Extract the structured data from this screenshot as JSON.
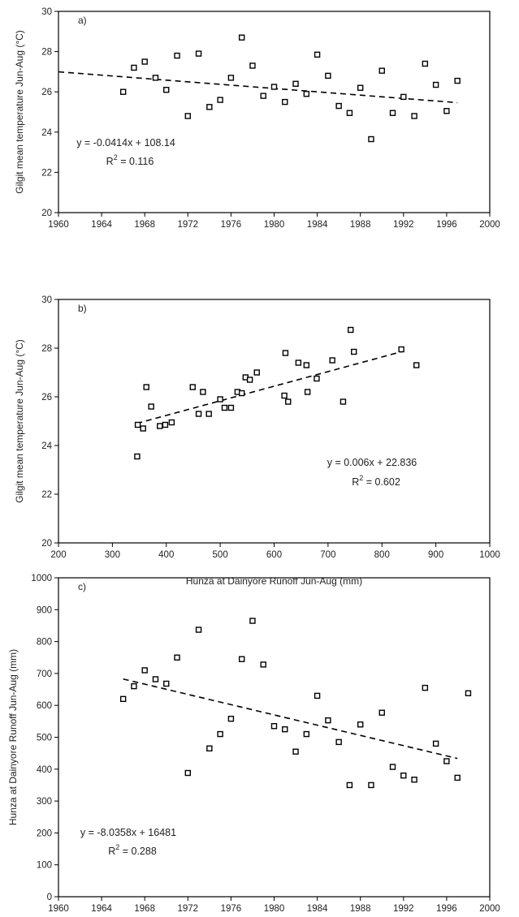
{
  "chart_data": [
    {
      "type": "scatter",
      "panel_label": "a)",
      "title": "",
      "xlabel": "",
      "ylabel": "Gilgit mean temperature Jun-Aug (°C)",
      "xlim": [
        1960,
        2000
      ],
      "ylim": [
        20,
        30
      ],
      "xticks": [
        1960,
        1964,
        1968,
        1972,
        1976,
        1980,
        1984,
        1988,
        1992,
        1996,
        2000
      ],
      "yticks": [
        20,
        22,
        24,
        26,
        28,
        30
      ],
      "grid": false,
      "points": [
        [
          1966,
          26.0
        ],
        [
          1967,
          27.2
        ],
        [
          1968,
          27.5
        ],
        [
          1969,
          26.7
        ],
        [
          1970,
          26.1
        ],
        [
          1971,
          27.8
        ],
        [
          1972,
          24.8
        ],
        [
          1973,
          27.9
        ],
        [
          1974,
          25.25
        ],
        [
          1975,
          25.6
        ],
        [
          1976,
          26.7
        ],
        [
          1977,
          28.7
        ],
        [
          1978,
          27.3
        ],
        [
          1979,
          25.8
        ],
        [
          1980,
          26.25
        ],
        [
          1981,
          25.5
        ],
        [
          1982,
          26.4
        ],
        [
          1983,
          25.9
        ],
        [
          1984,
          27.85
        ],
        [
          1985,
          26.8
        ],
        [
          1986,
          25.3
        ],
        [
          1987,
          24.95
        ],
        [
          1988,
          26.2
        ],
        [
          1989,
          23.65
        ],
        [
          1990,
          27.05
        ],
        [
          1991,
          24.95
        ],
        [
          1992,
          25.75
        ],
        [
          1993,
          24.8
        ],
        [
          1994,
          27.4
        ],
        [
          1995,
          26.35
        ],
        [
          1996,
          25.05
        ],
        [
          1997,
          26.55
        ]
      ],
      "trendline": {
        "slope": -0.0414,
        "intercept": 108.14,
        "x_range": [
          1960,
          1997
        ]
      },
      "equation": "y = -0.0414x + 108.14",
      "r2_value": "0.116"
    },
    {
      "type": "scatter",
      "panel_label": "b)",
      "title": "",
      "xlabel": "Hunza at Dainyore Runoff Jun-Aug (mm)",
      "ylabel": "Gilgit mean temperature Jun-Aug (°C)",
      "xlim": [
        200,
        1000
      ],
      "ylim": [
        20,
        30
      ],
      "xticks": [
        200,
        300,
        400,
        500,
        600,
        700,
        800,
        900,
        1000
      ],
      "yticks": [
        20,
        22,
        24,
        26,
        28,
        30
      ],
      "grid": false,
      "points": [
        [
          346,
          23.55
        ],
        [
          347,
          24.85
        ],
        [
          357,
          24.7
        ],
        [
          363,
          26.4
        ],
        [
          372,
          25.6
        ],
        [
          388,
          24.8
        ],
        [
          398,
          24.85
        ],
        [
          410,
          24.95
        ],
        [
          449,
          26.4
        ],
        [
          460,
          25.3
        ],
        [
          468,
          26.2
        ],
        [
          479,
          25.3
        ],
        [
          500,
          25.9
        ],
        [
          508,
          25.55
        ],
        [
          520,
          25.55
        ],
        [
          532,
          26.2
        ],
        [
          540,
          26.15
        ],
        [
          547,
          26.8
        ],
        [
          555,
          26.7
        ],
        [
          568,
          27.0
        ],
        [
          619,
          26.05
        ],
        [
          621,
          27.8
        ],
        [
          626,
          25.8
        ],
        [
          645,
          27.4
        ],
        [
          660,
          27.3
        ],
        [
          662,
          26.2
        ],
        [
          679,
          26.75
        ],
        [
          708,
          27.5
        ],
        [
          728,
          25.8
        ],
        [
          742,
          28.75
        ],
        [
          748,
          27.85
        ],
        [
          836,
          27.95
        ],
        [
          864,
          27.3
        ]
      ],
      "trendline": {
        "slope": 0.006,
        "intercept": 22.836,
        "x_range": [
          345,
          840
        ]
      },
      "equation": "y = 0.006x + 22.836",
      "r2_value": "0.602"
    },
    {
      "type": "scatter",
      "panel_label": "c)",
      "title": "",
      "xlabel": "",
      "ylabel": "Hunza at Dainyore Runoff Jun-Aug (mm)",
      "xlim": [
        1960,
        2000
      ],
      "ylim": [
        0,
        1000
      ],
      "xticks": [
        1960,
        1964,
        1968,
        1972,
        1976,
        1980,
        1984,
        1988,
        1992,
        1996,
        2000
      ],
      "yticks": [
        0,
        100,
        200,
        300,
        400,
        500,
        600,
        700,
        800,
        900,
        1000
      ],
      "grid": false,
      "points": [
        [
          1966,
          620
        ],
        [
          1967,
          660
        ],
        [
          1968,
          710
        ],
        [
          1969,
          682
        ],
        [
          1970,
          668
        ],
        [
          1971,
          750
        ],
        [
          1972,
          388
        ],
        [
          1973,
          837
        ],
        [
          1974,
          465
        ],
        [
          1975,
          510
        ],
        [
          1976,
          558
        ],
        [
          1977,
          745
        ],
        [
          1978,
          865
        ],
        [
          1979,
          728
        ],
        [
          1980,
          535
        ],
        [
          1981,
          525
        ],
        [
          1982,
          455
        ],
        [
          1983,
          510
        ],
        [
          1984,
          630
        ],
        [
          1985,
          553
        ],
        [
          1986,
          485
        ],
        [
          1987,
          350
        ],
        [
          1988,
          540
        ],
        [
          1989,
          350
        ],
        [
          1990,
          577
        ],
        [
          1991,
          407
        ],
        [
          1992,
          380
        ],
        [
          1993,
          367
        ],
        [
          1994,
          655
        ],
        [
          1995,
          480
        ],
        [
          1996,
          425
        ],
        [
          1997,
          373
        ],
        [
          1998,
          638
        ]
      ],
      "trendline": {
        "slope": -8.0358,
        "intercept": 16481,
        "x_range": [
          1966,
          1997
        ]
      },
      "equation": "y = -8.0358x + 16481",
      "r2_value": "0.288"
    }
  ]
}
